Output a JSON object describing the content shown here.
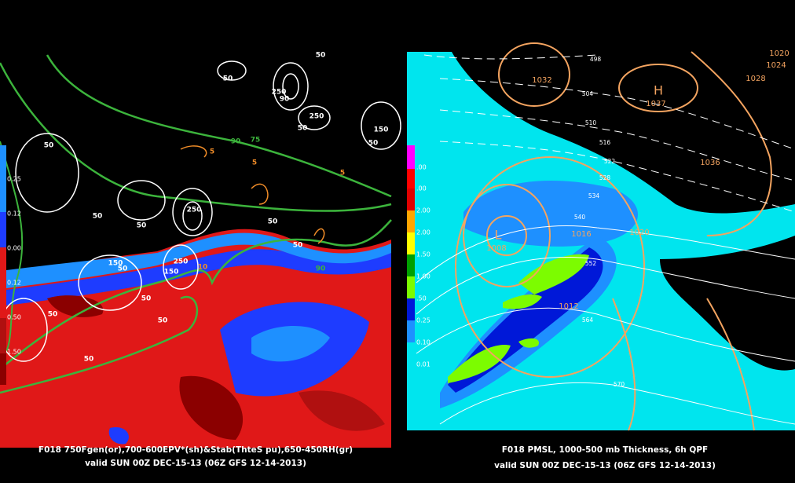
{
  "left_panel": {
    "caption": "F018 750Fgen(or),700-600EPV*(sh)&Stab(ThteS pu),650-450RH(gr)",
    "valid": "valid SUN 00Z DEC-15-13 (06Z GFS 12-14-2013)",
    "colorbar_labels": [
      "0.25",
      "0.12",
      "0.00",
      "0.12",
      "0.50",
      "1.50"
    ],
    "contour_labels": [
      "50",
      "50",
      "250",
      "90",
      "250",
      "50",
      "150",
      "50",
      "90",
      "75",
      "5",
      "5",
      "5",
      "50",
      "50",
      "50",
      "250",
      "50",
      "150",
      "250",
      "150",
      "50",
      "50",
      "50",
      "50",
      "50",
      "50",
      "90",
      "10"
    ]
  },
  "right_panel": {
    "caption": "F018 PMSL, 1000-500 mb Thickness, 6h QPF",
    "valid": "valid SUN 00Z DEC-15-13 (06Z GFS 12-14-2013)",
    "colorbar_labels": [
      ".00",
      ".00",
      "2.00",
      "2.00",
      "1.50",
      "1.00",
      ".50",
      "0.25",
      "0.10",
      "0.01"
    ],
    "pressure_labels": [
      "H",
      "1037",
      "L",
      "1008",
      "1032",
      "1028",
      "1024",
      "1020",
      "1036",
      "1020",
      "1012",
      "1016"
    ],
    "thickness_labels": [
      "498",
      "504",
      "510",
      "516",
      "522",
      "528",
      "534",
      "540",
      "552",
      "564",
      "570"
    ]
  }
}
